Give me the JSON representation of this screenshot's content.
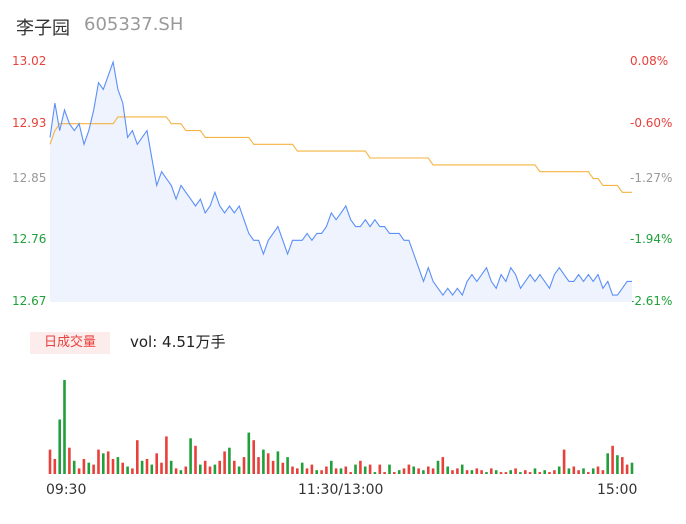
{
  "header": {
    "name": "李子园",
    "code": "605337.SH"
  },
  "colors": {
    "up": "#e8413c",
    "down": "#20a03c",
    "price_line": "#5b8ff9",
    "avg_line": "#f5b342",
    "neutral": "#999999"
  },
  "volume_panel": {
    "badge": "日成交量",
    "volume_text": "vol: 4.51万手"
  },
  "chart_data": [
    {
      "type": "line",
      "y_ticks": [
        "13.02",
        "12.93",
        "12.85",
        "12.76",
        "12.67"
      ],
      "y_tick_values": [
        13.02,
        12.93,
        12.85,
        12.76,
        12.67
      ],
      "pct_ticks": [
        "0.08%",
        "-0.60%",
        "-1.27%",
        "-1.94%",
        "-2.61%"
      ],
      "ylim": [
        12.67,
        13.02
      ],
      "x_ticks": [
        "09:30",
        "11:30/13:00",
        "15:00"
      ],
      "series": [
        {
          "key": "price",
          "x": [
            0,
            2,
            4,
            6,
            8,
            10,
            12,
            14,
            16,
            18,
            20,
            22,
            24,
            26,
            28,
            30,
            32,
            34,
            36,
            38,
            40,
            42,
            44,
            46,
            48,
            50,
            52,
            54,
            56,
            58,
            60,
            62,
            64,
            66,
            68,
            70,
            72,
            74,
            76,
            78,
            80,
            82,
            84,
            86,
            88,
            90,
            92,
            94,
            96,
            98,
            100,
            102,
            104,
            106,
            108,
            110,
            112,
            114,
            116,
            118,
            120,
            122,
            124,
            126,
            128,
            130,
            132,
            134,
            136,
            138,
            140,
            142,
            144,
            146,
            148,
            150,
            152,
            154,
            156,
            158,
            160,
            162,
            164,
            166,
            168,
            170,
            172,
            174,
            176,
            178,
            180,
            182,
            184,
            186,
            188,
            190,
            192,
            194,
            196,
            198,
            200,
            202,
            204,
            206,
            208,
            210,
            212,
            214,
            216,
            218,
            220,
            222,
            224,
            226,
            228,
            230,
            232,
            234,
            236,
            238,
            240
          ],
          "values": [
            12.91,
            12.96,
            12.92,
            12.95,
            12.93,
            12.92,
            12.93,
            12.9,
            12.92,
            12.95,
            12.99,
            12.98,
            13.0,
            13.02,
            12.98,
            12.96,
            12.91,
            12.92,
            12.9,
            12.91,
            12.92,
            12.88,
            12.84,
            12.86,
            12.85,
            12.84,
            12.82,
            12.84,
            12.83,
            12.82,
            12.81,
            12.82,
            12.8,
            12.81,
            12.83,
            12.81,
            12.8,
            12.81,
            12.8,
            12.81,
            12.79,
            12.77,
            12.76,
            12.76,
            12.74,
            12.76,
            12.77,
            12.78,
            12.76,
            12.74,
            12.76,
            12.76,
            12.76,
            12.77,
            12.76,
            12.77,
            12.77,
            12.78,
            12.8,
            12.79,
            12.8,
            12.81,
            12.79,
            12.78,
            12.78,
            12.79,
            12.78,
            12.79,
            12.78,
            12.78,
            12.77,
            12.77,
            12.77,
            12.76,
            12.76,
            12.74,
            12.72,
            12.7,
            12.72,
            12.7,
            12.69,
            12.68,
            12.69,
            12.68,
            12.69,
            12.68,
            12.7,
            12.71,
            12.7,
            12.71,
            12.72,
            12.7,
            12.69,
            12.71,
            12.7,
            12.72,
            12.71,
            12.69,
            12.7,
            12.71,
            12.7,
            12.71,
            12.7,
            12.69,
            12.71,
            12.72,
            12.71,
            12.7,
            12.7,
            12.71,
            12.7,
            12.71,
            12.7,
            12.71,
            12.69,
            12.7,
            12.68,
            12.68,
            12.69,
            12.7,
            12.7
          ]
        },
        {
          "key": "avg",
          "x": [
            0,
            2,
            4,
            6,
            8,
            10,
            12,
            14,
            16,
            18,
            20,
            22,
            24,
            26,
            28,
            30,
            32,
            34,
            36,
            38,
            40,
            42,
            44,
            46,
            48,
            50,
            52,
            54,
            56,
            58,
            60,
            62,
            64,
            66,
            68,
            70,
            72,
            74,
            76,
            78,
            80,
            82,
            84,
            86,
            88,
            90,
            92,
            94,
            96,
            98,
            100,
            102,
            104,
            106,
            108,
            110,
            112,
            114,
            116,
            118,
            120,
            122,
            124,
            126,
            128,
            130,
            132,
            134,
            136,
            138,
            140,
            142,
            144,
            146,
            148,
            150,
            152,
            154,
            156,
            158,
            160,
            162,
            164,
            166,
            168,
            170,
            172,
            174,
            176,
            178,
            180,
            182,
            184,
            186,
            188,
            190,
            192,
            194,
            196,
            198,
            200,
            202,
            204,
            206,
            208,
            210,
            212,
            214,
            216,
            218,
            220,
            222,
            224,
            226,
            228,
            230,
            232,
            234,
            236,
            238,
            240
          ],
          "values": [
            12.9,
            12.92,
            12.93,
            12.93,
            12.93,
            12.93,
            12.93,
            12.93,
            12.93,
            12.93,
            12.93,
            12.93,
            12.93,
            12.93,
            12.94,
            12.94,
            12.94,
            12.94,
            12.94,
            12.94,
            12.94,
            12.94,
            12.94,
            12.94,
            12.94,
            12.93,
            12.93,
            12.93,
            12.92,
            12.92,
            12.92,
            12.92,
            12.91,
            12.91,
            12.91,
            12.91,
            12.91,
            12.91,
            12.91,
            12.91,
            12.91,
            12.91,
            12.9,
            12.9,
            12.9,
            12.9,
            12.9,
            12.9,
            12.9,
            12.9,
            12.9,
            12.89,
            12.89,
            12.89,
            12.89,
            12.89,
            12.89,
            12.89,
            12.89,
            12.89,
            12.89,
            12.89,
            12.89,
            12.89,
            12.89,
            12.89,
            12.88,
            12.88,
            12.88,
            12.88,
            12.88,
            12.88,
            12.88,
            12.88,
            12.88,
            12.88,
            12.88,
            12.88,
            12.88,
            12.87,
            12.87,
            12.87,
            12.87,
            12.87,
            12.87,
            12.87,
            12.87,
            12.87,
            12.87,
            12.87,
            12.87,
            12.87,
            12.87,
            12.87,
            12.87,
            12.87,
            12.87,
            12.87,
            12.87,
            12.87,
            12.87,
            12.86,
            12.86,
            12.86,
            12.86,
            12.86,
            12.86,
            12.86,
            12.86,
            12.86,
            12.86,
            12.86,
            12.85,
            12.85,
            12.84,
            12.84,
            12.84,
            12.84,
            12.83,
            12.83,
            12.83
          ]
        }
      ]
    },
    {
      "type": "bar",
      "x": [
        0,
        2,
        4,
        6,
        8,
        10,
        12,
        14,
        16,
        18,
        20,
        22,
        24,
        26,
        28,
        30,
        32,
        34,
        36,
        38,
        40,
        42,
        44,
        46,
        48,
        50,
        52,
        54,
        56,
        58,
        60,
        62,
        64,
        66,
        68,
        70,
        72,
        74,
        76,
        78,
        80,
        82,
        84,
        86,
        88,
        90,
        92,
        94,
        96,
        98,
        100,
        102,
        104,
        106,
        108,
        110,
        112,
        114,
        116,
        118,
        120,
        122,
        124,
        126,
        128,
        130,
        132,
        134,
        136,
        138,
        140,
        142,
        144,
        146,
        148,
        150,
        152,
        154,
        156,
        158,
        160,
        162,
        164,
        166,
        168,
        170,
        172,
        174,
        176,
        178,
        180,
        182,
        184,
        186,
        188,
        190,
        192,
        194,
        196,
        198,
        200,
        202,
        204,
        206,
        208,
        210,
        212,
        214,
        216,
        218,
        220,
        222,
        224,
        226,
        228,
        230,
        232,
        234,
        236,
        238,
        240
      ],
      "values": [
        26,
        16,
        58,
        100,
        28,
        14,
        6,
        16,
        12,
        10,
        26,
        22,
        24,
        16,
        18,
        12,
        8,
        6,
        36,
        14,
        16,
        10,
        22,
        12,
        40,
        14,
        6,
        4,
        8,
        38,
        30,
        10,
        14,
        8,
        10,
        14,
        24,
        28,
        14,
        8,
        18,
        44,
        36,
        18,
        26,
        22,
        14,
        24,
        12,
        18,
        8,
        6,
        12,
        6,
        10,
        4,
        4,
        8,
        14,
        6,
        6,
        8,
        2,
        10,
        14,
        8,
        10,
        2,
        10,
        2,
        10,
        2,
        4,
        6,
        10,
        8,
        6,
        4,
        8,
        6,
        14,
        18,
        8,
        4,
        6,
        10,
        4,
        4,
        6,
        4,
        2,
        6,
        4,
        2,
        2,
        4,
        6,
        2,
        4,
        2,
        6,
        2,
        4,
        2,
        4,
        8,
        26,
        6,
        8,
        4,
        6,
        2,
        6,
        8,
        4,
        22,
        30,
        20,
        18,
        10,
        12
      ],
      "direction": [
        1,
        1,
        -1,
        -1,
        1,
        -1,
        1,
        1,
        -1,
        1,
        1,
        -1,
        1,
        1,
        -1,
        1,
        -1,
        1,
        1,
        -1,
        1,
        -1,
        1,
        1,
        1,
        -1,
        1,
        -1,
        1,
        -1,
        1,
        -1,
        1,
        1,
        -1,
        1,
        1,
        -1,
        1,
        -1,
        1,
        -1,
        1,
        1,
        -1,
        1,
        1,
        -1,
        1,
        -1,
        1,
        1,
        -1,
        1,
        1,
        -1,
        1,
        1,
        -1,
        1,
        -1,
        1,
        1,
        -1,
        1,
        -1,
        1,
        -1,
        1,
        1,
        -1,
        1,
        -1,
        1,
        1,
        -1,
        1,
        -1,
        1,
        1,
        -1,
        1,
        -1,
        1,
        1,
        -1,
        1,
        -1,
        1,
        1,
        -1,
        1,
        -1,
        1,
        1,
        -1,
        1,
        -1,
        1,
        1,
        -1,
        1,
        -1,
        1,
        1,
        -1,
        1,
        -1,
        1,
        1,
        -1,
        1,
        -1,
        1,
        1,
        -1,
        1,
        -1,
        1,
        1
      ]
    }
  ]
}
